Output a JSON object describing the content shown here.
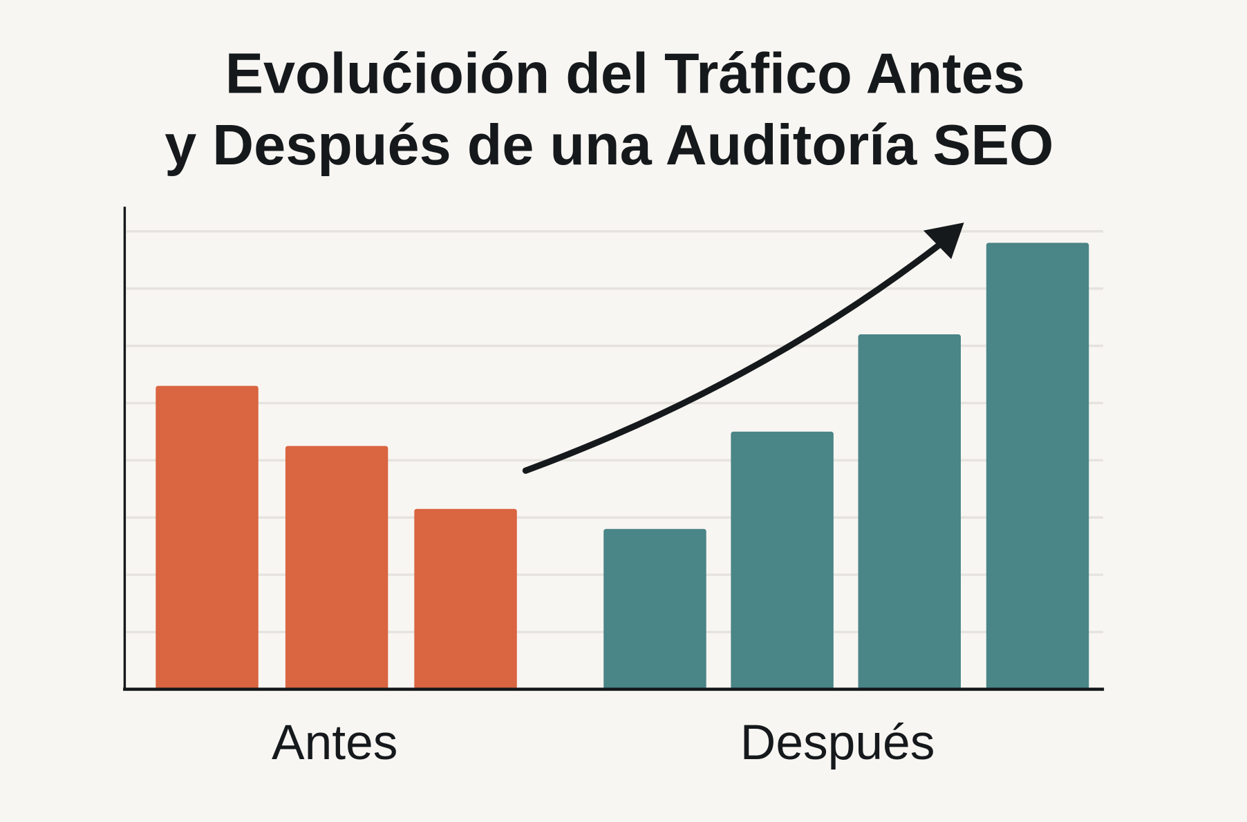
{
  "chart_data": {
    "type": "bar",
    "title": [
      "Evolućioión del Tráfico Antes",
      "y Después de una Auditoría SEO"
    ],
    "xlabel": "",
    "ylabel": "",
    "ylim": [
      0,
      8
    ],
    "grid": true,
    "groups": [
      {
        "label": "Antes",
        "color": "#d96541",
        "values": [
          5.3,
          4.25,
          3.15
        ]
      },
      {
        "label": "Después",
        "color": "#4a8587",
        "values": [
          2.8,
          4.5,
          6.2,
          7.8
        ]
      }
    ],
    "annotation": "upward-trend-arrow"
  }
}
